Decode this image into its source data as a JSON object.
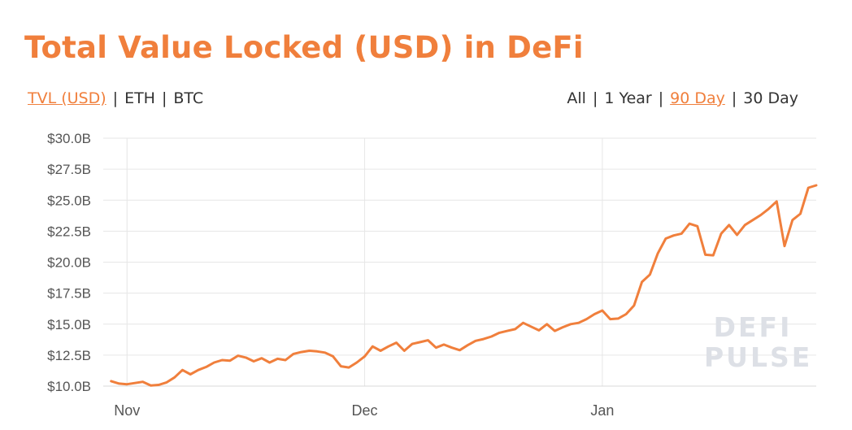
{
  "title": "Total Value Locked (USD) in DeFi",
  "unit_toggle": [
    {
      "label": "TVL (USD)",
      "active": true
    },
    {
      "label": "ETH",
      "active": false
    },
    {
      "label": "BTC",
      "active": false
    }
  ],
  "range_toggle": [
    {
      "label": "All",
      "active": false
    },
    {
      "label": "1 Year",
      "active": false
    },
    {
      "label": "90 Day",
      "active": true
    },
    {
      "label": "30 Day",
      "active": false
    }
  ],
  "separator": "|",
  "watermark": {
    "line1": "DEFI",
    "line2": "PULSE"
  },
  "colors": {
    "accent": "#f07f3c",
    "grid": "#e6e6e6",
    "text": "#333333"
  },
  "chart_data": {
    "type": "line",
    "title": "Total Value Locked (USD) in DeFi",
    "xlabel": "",
    "ylabel": "",
    "ylim": [
      10.0,
      30.0
    ],
    "yticks": [
      10.0,
      12.5,
      15.0,
      17.5,
      20.0,
      22.5,
      25.0,
      27.5,
      30.0
    ],
    "ytick_labels": [
      "$10.0B",
      "$12.5B",
      "$15.0B",
      "$17.5B",
      "$20.0B",
      "$22.5B",
      "$25.0B",
      "$27.5B",
      "$30.0B"
    ],
    "xlim": [
      -1,
      89
    ],
    "xticks": [
      {
        "label": "Nov",
        "x": 2
      },
      {
        "label": "Dec",
        "x": 32
      },
      {
        "label": "Jan",
        "x": 62
      }
    ],
    "grid": true,
    "legend": "none",
    "series": [
      {
        "values": [
          10.4,
          10.2,
          10.15,
          10.25,
          10.35,
          10.05,
          10.1,
          10.3,
          10.7,
          11.3,
          10.95,
          11.3,
          11.55,
          11.9,
          12.1,
          12.05,
          12.45,
          12.3,
          12.0,
          12.25,
          11.9,
          12.2,
          12.1,
          12.6,
          12.75,
          12.85,
          12.8,
          12.7,
          12.4,
          11.6,
          11.5,
          11.9,
          12.4,
          13.2,
          12.85,
          13.2,
          13.5,
          12.85,
          13.4,
          13.55,
          13.7,
          13.1,
          13.35,
          13.1,
          12.9,
          13.3,
          13.65,
          13.8,
          14.0,
          14.3,
          14.45,
          14.6,
          15.1,
          14.8,
          14.5,
          15.0,
          14.45,
          14.75,
          15.0,
          15.1,
          15.4,
          15.8,
          16.1,
          15.4,
          15.45,
          15.8,
          16.5,
          18.4,
          19.0,
          20.7,
          21.9,
          22.15,
          22.3,
          23.1,
          22.9,
          20.6,
          20.55,
          22.3,
          23.0,
          22.2,
          23.0,
          23.4,
          23.8,
          24.3,
          24.9,
          21.3,
          23.4,
          23.9,
          26.0,
          26.2
        ]
      }
    ]
  }
}
